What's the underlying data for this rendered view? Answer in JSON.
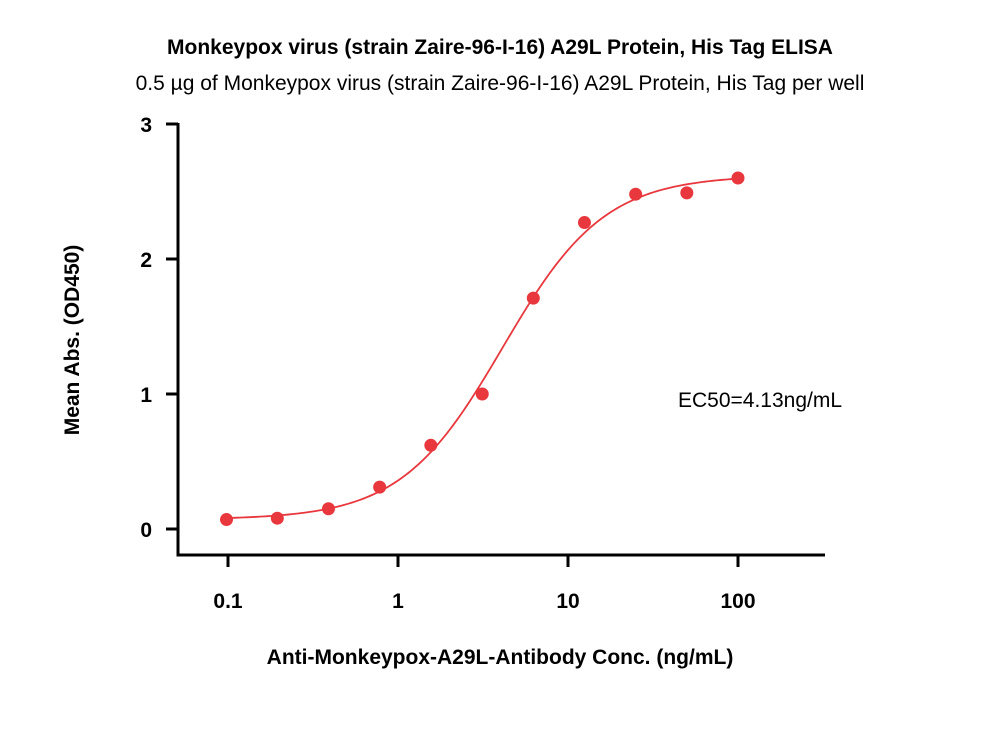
{
  "chart_data": {
    "type": "scatter",
    "title": "Monkeypox virus (strain Zaire-96-I-16) A29L Protein, His Tag ELISA",
    "subtitle": "0.5 µg of Monkeypox virus (strain Zaire-96-I-16) A29L Protein, His Tag per well",
    "xlabel": "Anti-Monkeypox-A29L-Antibody Conc. (ng/mL)",
    "ylabel": "Mean Abs. (OD450)",
    "xscale": "log",
    "xlim": [
      0.1,
      100
    ],
    "ylim": [
      0,
      3
    ],
    "x_ticks": [
      "0.1",
      "1",
      "10",
      "100"
    ],
    "y_ticks": [
      "0",
      "1",
      "2",
      "3"
    ],
    "series": [
      {
        "color": "#e8383d",
        "points": [
          {
            "x": 0.098,
            "y": 0.07
          },
          {
            "x": 0.195,
            "y": 0.08
          },
          {
            "x": 0.39,
            "y": 0.15
          },
          {
            "x": 0.78,
            "y": 0.31
          },
          {
            "x": 1.56,
            "y": 0.62
          },
          {
            "x": 3.13,
            "y": 1.0
          },
          {
            "x": 6.25,
            "y": 1.71
          },
          {
            "x": 12.5,
            "y": 2.27
          },
          {
            "x": 25,
            "y": 2.48
          },
          {
            "x": 50,
            "y": 2.49
          },
          {
            "x": 100,
            "y": 2.6
          }
        ],
        "fit": {
          "bottom": 0.07,
          "top": 2.62,
          "ec50": 4.13,
          "hill": 1.45
        }
      }
    ],
    "annotation": "EC50=4.13ng/mL",
    "grid": false
  }
}
